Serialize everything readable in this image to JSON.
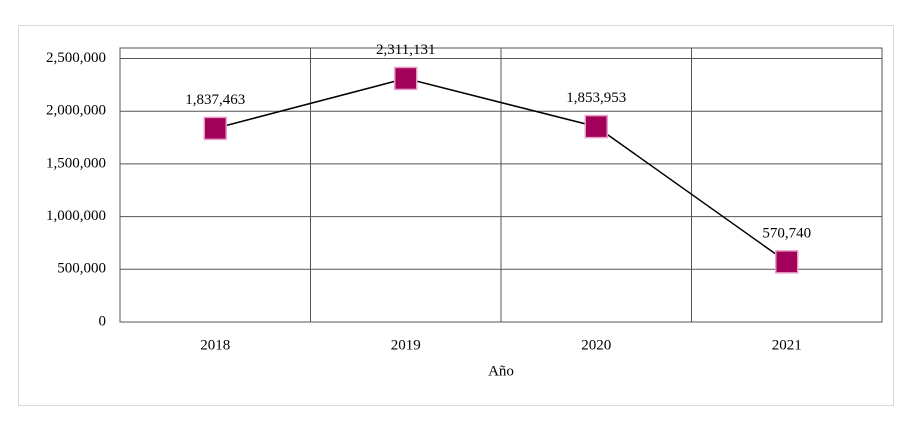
{
  "chart_data": {
    "type": "line",
    "x_label": "Año",
    "categories": [
      "2018",
      "2019",
      "2020",
      "2021"
    ],
    "series": [
      {
        "color": "#a3005a",
        "values": [
          1837463,
          2311131,
          1853953,
          570740
        ],
        "value_labels": [
          "1,837,463",
          "2,311,131",
          "1,853,953",
          "570,740"
        ]
      }
    ],
    "ylim": [
      0,
      2600000
    ],
    "yticks": [
      0,
      {
        "value": 500000,
        "label": "500,000"
      },
      {
        "value": 1000000,
        "label": "1,000,000"
      },
      {
        "value": 1500000,
        "label": "1,500,000"
      },
      {
        "value": 2000000,
        "label": "2,000,000"
      },
      {
        "value": 2500000,
        "label": "2,500,000"
      }
    ],
    "grid": true
  }
}
